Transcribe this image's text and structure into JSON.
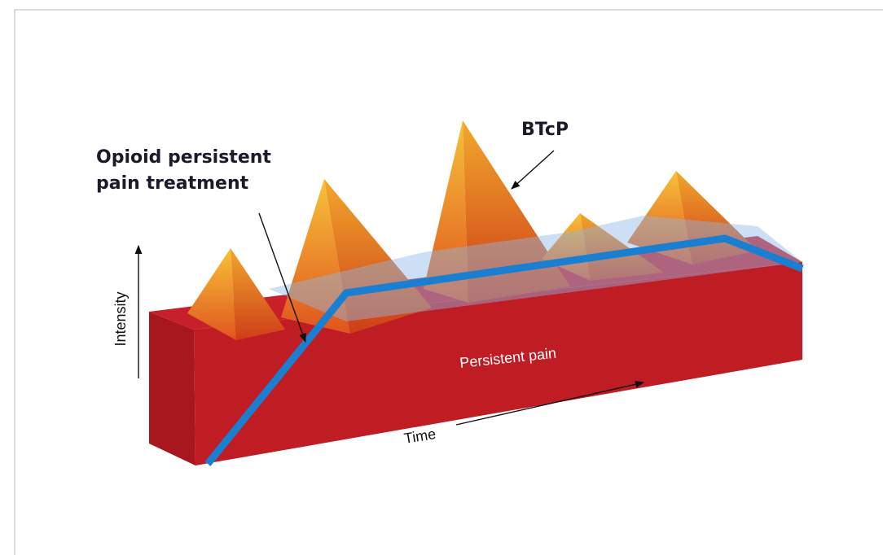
{
  "annotations": {
    "btcp": "BTcP",
    "opioid": [
      "Opioid persistent",
      "pain treatment"
    ]
  },
  "axes": {
    "y_label": "Intensity",
    "x_label": "Time"
  },
  "bar_label": "Persistent pain"
}
